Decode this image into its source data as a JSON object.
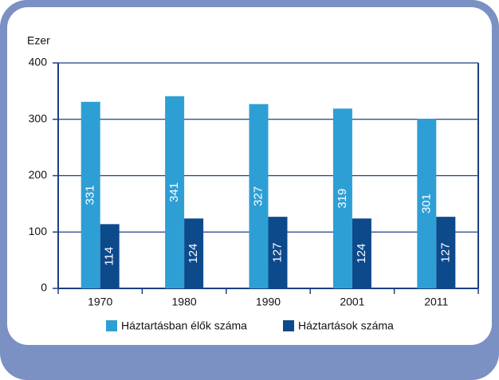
{
  "chart_data": {
    "type": "bar",
    "y_label": "Ezer",
    "categories": [
      "1970",
      "1980",
      "1990",
      "2001",
      "2011"
    ],
    "series": [
      {
        "name": "Háztartásban élők száma",
        "color": "#2e9fd4",
        "values": [
          331,
          341,
          327,
          319,
          301
        ]
      },
      {
        "name": "Háztartások száma",
        "color": "#0d4a8c",
        "values": [
          114,
          124,
          127,
          124,
          127
        ]
      }
    ],
    "ylim": [
      0,
      400
    ],
    "yticks": [
      0,
      100,
      200,
      300,
      400
    ],
    "grid": true,
    "legend": "bottom"
  }
}
